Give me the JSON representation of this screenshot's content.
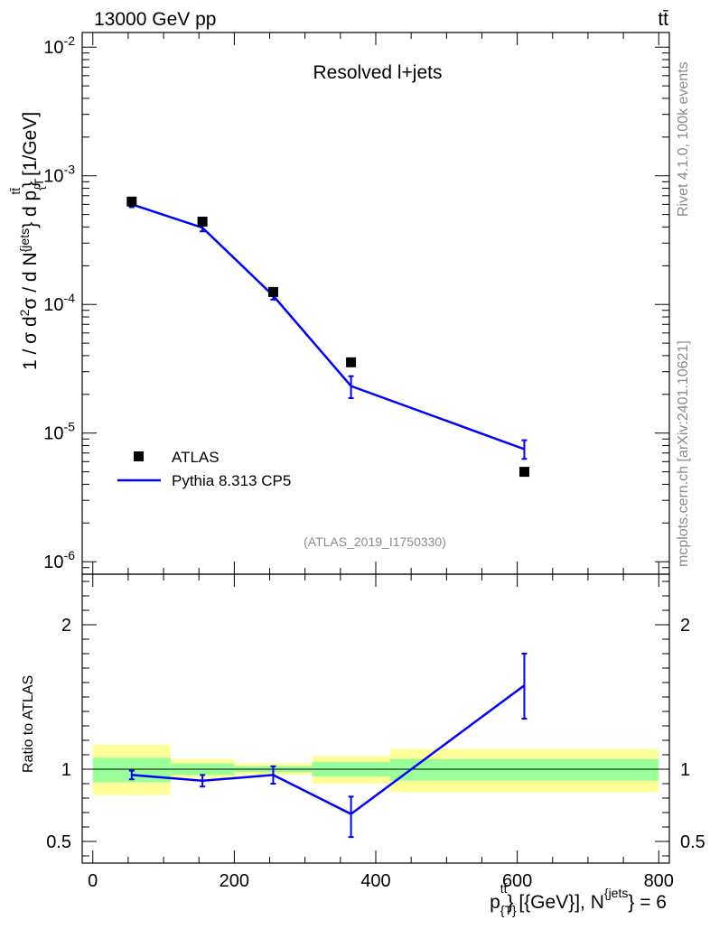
{
  "header": {
    "left": "13000 GeV pp",
    "right": "tt̄"
  },
  "side_labels": {
    "rivet": "Rivet 4.1.0,  100k events",
    "mcplots": "mcplots.cern.ch [arXiv:2401.10621]"
  },
  "chart_data": {
    "type": "line",
    "title": "Resolved l+jets",
    "analysis_id": "(ATLAS_2019_I1750330)",
    "x_axis": {
      "label": "p_T^{tt̄} [{GeV}], N^{jets} = 6",
      "label_main": "p",
      "label_sub": "{T}",
      "label_sup": "tt̄",
      "label_mid": "} [{GeV}], N",
      "label_sup2": "{jets",
      "label_end": "} = 6",
      "range": [
        -15,
        815
      ],
      "ticks": [
        0,
        200,
        400,
        600,
        800
      ],
      "tick_labels": [
        "0",
        "200",
        "400",
        "600",
        "800"
      ]
    },
    "main_panel": {
      "y_label": "1 / σ d²σ / d N^{jets} } d p_T^{tt̄} } [1/GeV]",
      "y_scale": "log",
      "y_range": [
        8e-07,
        0.013
      ],
      "y_ticks": [
        1e-06,
        1e-05,
        0.0001,
        0.001,
        0.01
      ],
      "y_tick_labels": [
        "10^-6",
        "10^-5",
        "10^-4",
        "10^-3",
        "10^-2"
      ],
      "legend": [
        "ATLAS",
        "Pythia 8.313 CP5"
      ],
      "data": {
        "name": "ATLAS",
        "x": [
          55,
          155,
          255,
          365,
          610
        ],
        "y": [
          0.00063,
          0.00044,
          0.000125,
          3.55e-05,
          5e-06
        ]
      },
      "mc": {
        "name": "Pythia 8.313 CP5",
        "color": "#0000ff",
        "x": [
          55,
          155,
          255,
          365,
          610
        ],
        "y": [
          0.0006,
          0.000395,
          0.000117,
          2.32e-05,
          7.5e-06
        ],
        "err_lo": [
          0.00057,
          0.00037,
          0.000109,
          1.87e-05,
          6.3e-06
        ],
        "err_hi": [
          0.00063,
          0.00042,
          0.000125,
          2.77e-05,
          8.8e-06
        ]
      }
    },
    "ratio_panel": {
      "y_label": "Ratio to ATLAS",
      "y_range": [
        0.35,
        2.35
      ],
      "y_ticks": [
        0.5,
        1,
        2
      ],
      "y_tick_labels": [
        "0.5",
        "1",
        "2"
      ],
      "bands": [
        {
          "x0": 0,
          "x1": 110,
          "yellow": [
            0.82,
            1.17
          ],
          "green": [
            0.91,
            1.08
          ]
        },
        {
          "x0": 110,
          "x1": 200,
          "yellow": [
            0.94,
            1.07
          ],
          "green": [
            0.96,
            1.04
          ]
        },
        {
          "x0": 200,
          "x1": 310,
          "yellow": [
            0.96,
            1.04
          ],
          "green": [
            0.98,
            1.02
          ]
        },
        {
          "x0": 310,
          "x1": 420,
          "yellow": [
            0.9,
            1.09
          ],
          "green": [
            0.95,
            1.05
          ]
        },
        {
          "x0": 420,
          "x1": 800,
          "yellow": [
            0.84,
            1.14
          ],
          "green": [
            0.92,
            1.07
          ]
        }
      ],
      "mc": {
        "x": [
          55,
          155,
          255,
          365,
          610
        ],
        "y": [
          0.96,
          0.92,
          0.96,
          0.69,
          1.58
        ],
        "err_lo": [
          0.93,
          0.88,
          0.9,
          0.53,
          1.35
        ],
        "err_hi": [
          0.99,
          0.96,
          1.02,
          0.81,
          1.8
        ]
      }
    }
  }
}
